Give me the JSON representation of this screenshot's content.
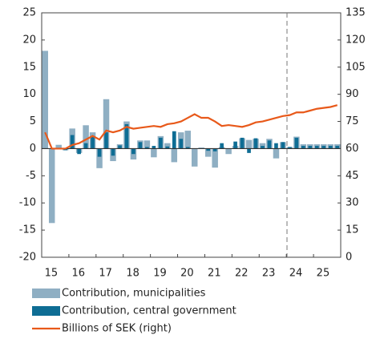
{
  "chart_data": {
    "type": "bar",
    "categories": [
      "15",
      null,
      null,
      null,
      "16",
      null,
      null,
      null,
      "17",
      null,
      null,
      null,
      "18",
      null,
      null,
      null,
      "19",
      null,
      null,
      null,
      "20",
      null,
      null,
      null,
      "21",
      null,
      null,
      null,
      "22",
      null,
      null,
      null,
      "23",
      null,
      null,
      null,
      "24",
      null,
      null,
      null,
      "25",
      null,
      null,
      null
    ],
    "series": [
      {
        "name": "Contribution, municipalities",
        "color": "#8fafc3",
        "values": [
          18,
          -13.7,
          0.7,
          -0.3,
          3.7,
          -0.8,
          4.3,
          3.0,
          -3.6,
          9.1,
          -2.3,
          0.8,
          5.0,
          -2.0,
          1.5,
          1.5,
          -1.6,
          2.3,
          1.0,
          -2.5,
          3.0,
          3.3,
          -3.3,
          0.2,
          -1.5,
          -3.5,
          0.3,
          -1.0,
          0.5,
          1.9,
          1.6,
          1.8,
          1.0,
          1.8,
          -1.8,
          1.2,
          0.3,
          2.2,
          0.8,
          0.8,
          0.8,
          0.8,
          0.8,
          0.8
        ]
      },
      {
        "name": "Contribution, central government",
        "color": "#0e6d94",
        "values": [
          0,
          0,
          0,
          -0.3,
          2.5,
          -1.0,
          1.0,
          2.2,
          -1.5,
          3.0,
          -1.3,
          0.6,
          4.5,
          -1.0,
          1.2,
          0.3,
          0.5,
          2.0,
          0.4,
          3.2,
          1.8,
          0.3,
          0,
          0,
          -0.4,
          -0.5,
          1.0,
          0,
          1.3,
          2.0,
          -0.8,
          1.9,
          0.5,
          1.5,
          1.0,
          1.2,
          0.3,
          2.0,
          0.5,
          0.5,
          0.5,
          0.5,
          0.5,
          0.5
        ]
      },
      {
        "name": "Billions of SEK (right)",
        "color": "#e8591a",
        "axis": "y2",
        "type": "line",
        "values": [
          69,
          60,
          60,
          60,
          62,
          63,
          65,
          67,
          65,
          70,
          69,
          70,
          72,
          71,
          71.5,
          72,
          72.5,
          72,
          73.5,
          74,
          75,
          77,
          79,
          77,
          77,
          75,
          72.5,
          73,
          72.5,
          72,
          73,
          74.5,
          75,
          76,
          77,
          78,
          78.5,
          80,
          80,
          81,
          82,
          82.5,
          83,
          84
        ]
      }
    ],
    "ylim": [
      -20,
      25
    ],
    "yticks": [
      -20,
      -15,
      -10,
      -5,
      0,
      5,
      10,
      15,
      20,
      25
    ],
    "y2lim": [
      0,
      135
    ],
    "y2ticks": [
      0,
      15,
      30,
      45,
      60,
      75,
      90,
      105,
      120,
      135
    ]
  }
}
